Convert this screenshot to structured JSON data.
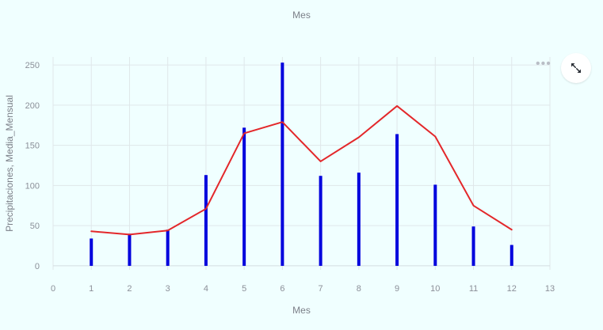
{
  "header": {
    "title": "Mes"
  },
  "toolbar": {
    "menu_icon": "more-horizontal-icon",
    "expand_icon": "expand-icon"
  },
  "chart_data": {
    "type": "bar",
    "title": "",
    "xlabel": "Mes",
    "ylabel": "Precipitaciones, Media_Mensual",
    "xlim": [
      0,
      13
    ],
    "ylim": [
      -5,
      260
    ],
    "x_ticks": [
      0,
      1,
      2,
      3,
      4,
      5,
      6,
      7,
      8,
      9,
      10,
      11,
      12,
      13
    ],
    "y_ticks": [
      0,
      50,
      100,
      150,
      200,
      250
    ],
    "grid": true,
    "legend": "none",
    "series": [
      {
        "type": "bar",
        "color": "#0000dd",
        "x": [
          1,
          2,
          3,
          4,
          5,
          6,
          7,
          8,
          9,
          10,
          11,
          12
        ],
        "values": [
          34,
          40,
          45,
          113,
          172,
          253,
          112,
          116,
          164,
          101,
          49,
          26
        ]
      },
      {
        "type": "line",
        "color": "#e3272a",
        "x": [
          1,
          2,
          3,
          4,
          5,
          6,
          7,
          8,
          9,
          10,
          11,
          12
        ],
        "values": [
          43,
          39,
          44,
          71,
          165,
          179,
          130,
          160,
          199,
          161,
          75,
          45
        ]
      }
    ]
  }
}
